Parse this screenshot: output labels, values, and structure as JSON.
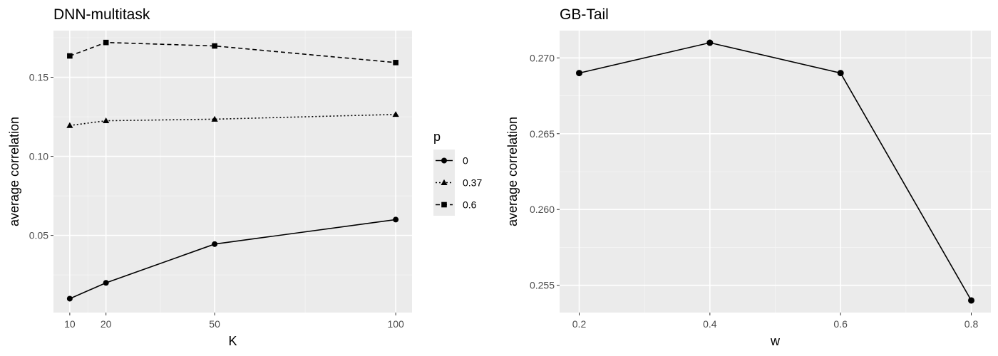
{
  "chart_data": [
    {
      "type": "line",
      "title": "DNN-multitask",
      "xlabel": "K",
      "ylabel": "average correlation",
      "x": [
        10,
        20,
        50,
        100
      ],
      "xlim": [
        5.5,
        104.5
      ],
      "ylim": [
        0.0012,
        0.1795
      ],
      "xticks": [
        10,
        20,
        50,
        100
      ],
      "yticks": [
        0.05,
        0.1,
        0.15
      ],
      "ytick_labels": [
        "0.05",
        "0.10",
        "0.15"
      ],
      "grid": true,
      "legend": {
        "title": "p",
        "position": "right",
        "entries": [
          {
            "label": "0",
            "marker": "circle",
            "linetype": "solid"
          },
          {
            "label": "0.37",
            "marker": "triangle",
            "linetype": "dotted"
          },
          {
            "label": "0.6",
            "marker": "square",
            "linetype": "dashed"
          }
        ]
      },
      "series": [
        {
          "name": "0",
          "marker": "circle",
          "linetype": "solid",
          "values": [
            0.01,
            0.02,
            0.0445,
            0.06
          ]
        },
        {
          "name": "0.37",
          "marker": "triangle",
          "linetype": "dotted",
          "values": [
            0.1195,
            0.1225,
            0.1235,
            0.1265
          ]
        },
        {
          "name": "0.6",
          "marker": "square",
          "linetype": "dashed",
          "values": [
            0.1635,
            0.172,
            0.1698,
            0.1593
          ]
        }
      ]
    },
    {
      "type": "line",
      "title": "GB-Tail",
      "xlabel": "w",
      "ylabel": "average correlation",
      "x": [
        0.2,
        0.4,
        0.6,
        0.8
      ],
      "xlim": [
        0.17,
        0.83
      ],
      "ylim": [
        0.2532,
        0.2718
      ],
      "xticks": [
        0.2,
        0.4,
        0.6,
        0.8
      ],
      "xtick_labels": [
        "0.2",
        "0.4",
        "0.6",
        "0.8"
      ],
      "yticks": [
        0.255,
        0.26,
        0.265,
        0.27
      ],
      "ytick_labels": [
        "0.255",
        "0.260",
        "0.265",
        "0.270"
      ],
      "grid": true,
      "series": [
        {
          "name": "average correlation",
          "marker": "circle",
          "linetype": "solid",
          "values": [
            0.269,
            0.271,
            0.269,
            0.254
          ]
        }
      ]
    }
  ]
}
